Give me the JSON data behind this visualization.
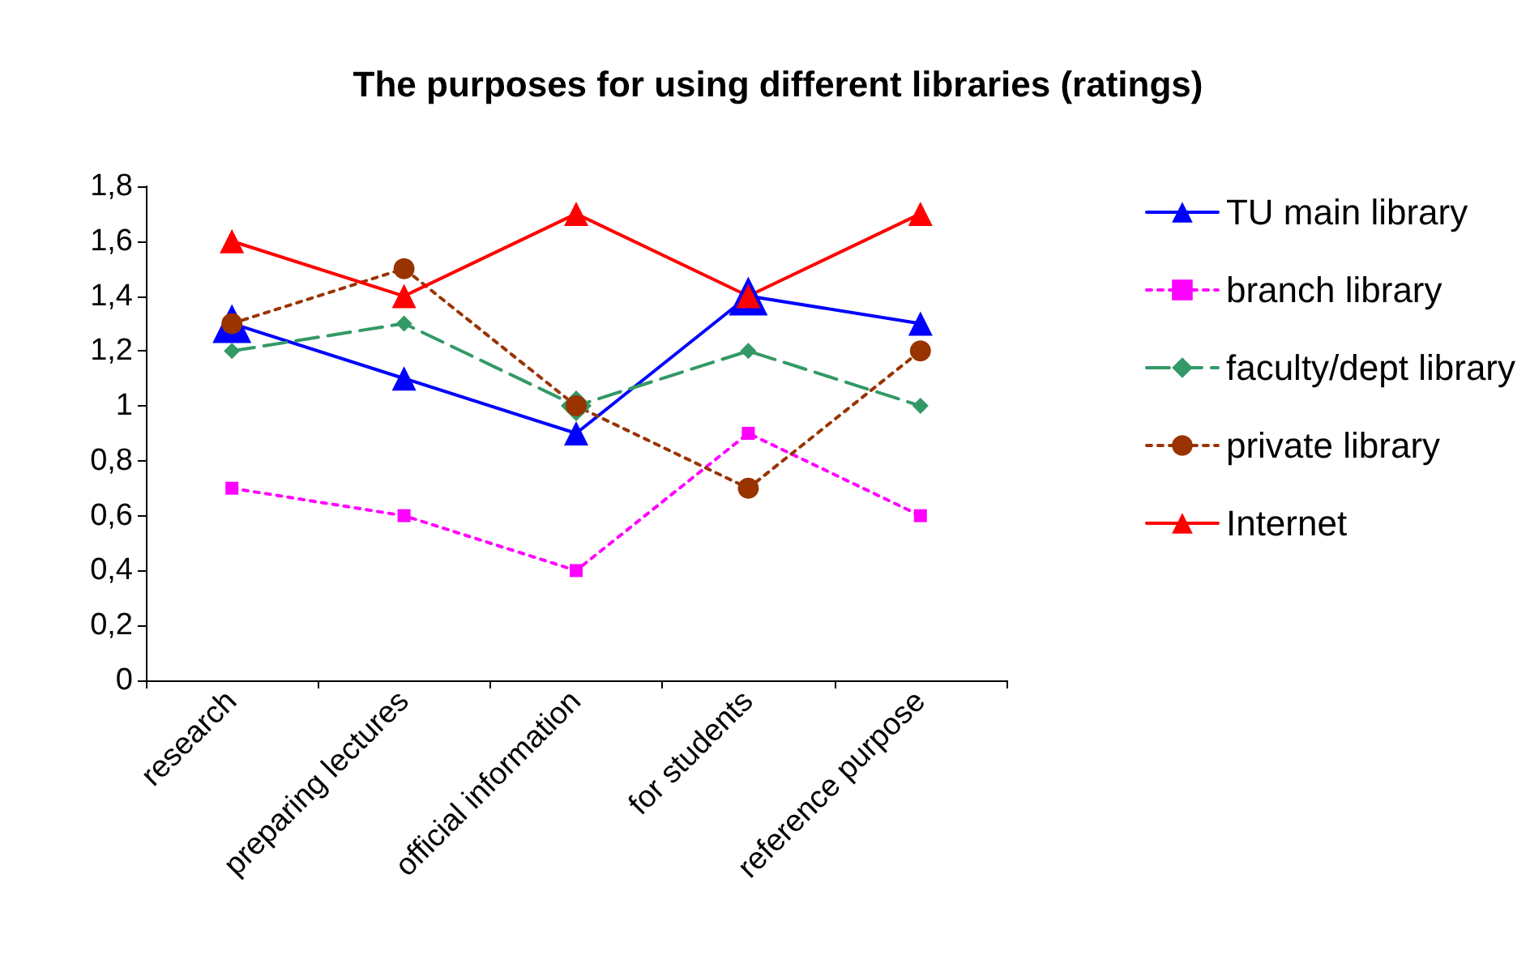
{
  "chart_data": {
    "type": "line",
    "title": "The purposes for using different libraries (ratings)",
    "categories": [
      "research",
      "preparing lectures",
      "official information",
      "for students",
      "reference purpose"
    ],
    "series": [
      {
        "name": "TU main library",
        "color": "#0000ff",
        "marker": "triangle",
        "line_style": "solid",
        "values": [
          1.3,
          1.1,
          0.9,
          1.4,
          1.3
        ]
      },
      {
        "name": "branch library",
        "color": "#ff00ff",
        "marker": "square",
        "line_style": "dotted",
        "values": [
          0.7,
          0.6,
          0.4,
          0.9,
          0.6
        ]
      },
      {
        "name": "faculty/dept library",
        "color": "#339966",
        "marker": "diamond",
        "line_style": "dashed",
        "values": [
          1.2,
          1.3,
          1.0,
          1.2,
          1.0
        ]
      },
      {
        "name": "private library",
        "color": "#993300",
        "marker": "circle",
        "line_style": "dotted",
        "values": [
          1.3,
          1.5,
          1.0,
          0.7,
          1.2
        ]
      },
      {
        "name": "Internet",
        "color": "#ff0000",
        "marker": "triangle",
        "line_style": "solid",
        "values": [
          1.6,
          1.4,
          1.7,
          1.4,
          1.7
        ]
      }
    ],
    "ylim": [
      0,
      1.8
    ],
    "yticks": [
      0,
      {
        "value": 0.2,
        "label": "0,2"
      },
      {
        "value": 0.4,
        "label": "0,4"
      },
      {
        "value": 0.6,
        "label": "0,6"
      },
      {
        "value": 0.8,
        "label": "0,8"
      },
      1,
      {
        "value": 1.2,
        "label": "1,2"
      },
      {
        "value": 1.4,
        "label": "1,4"
      },
      {
        "value": 1.6,
        "label": "1,6"
      },
      {
        "value": 1.8,
        "label": "1,8"
      }
    ],
    "grid": false,
    "legend": "right"
  }
}
